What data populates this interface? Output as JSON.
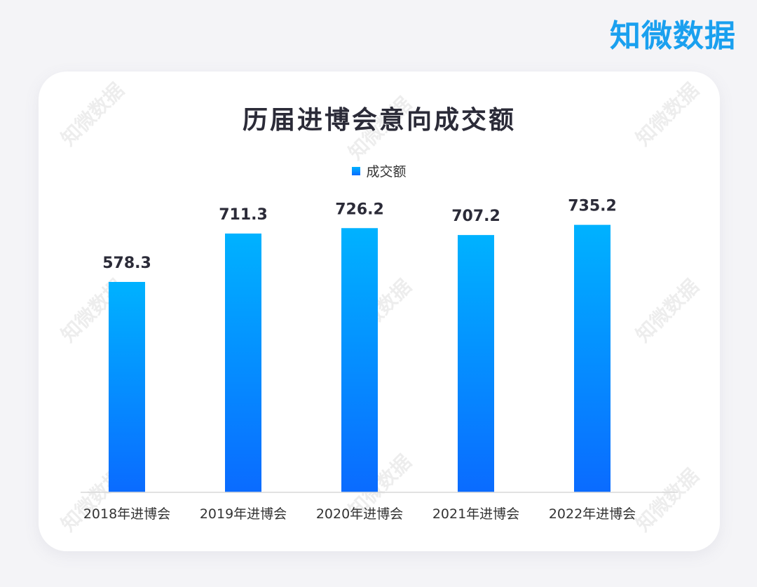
{
  "brand": {
    "text": "知微数据",
    "color": "#1aa0ef"
  },
  "watermark": {
    "text": "知微数据"
  },
  "chart_data": {
    "type": "bar",
    "title": "历届进博会意向成交额",
    "categories": [
      "2018年进博会",
      "2019年进博会",
      "2020年进博会",
      "2021年进博会",
      "2022年进博会"
    ],
    "series": [
      {
        "name": "成交额",
        "values": [
          578.3,
          711.3,
          726.2,
          707.2,
          735.2
        ]
      }
    ],
    "value_labels": [
      "578.3",
      "711.3",
      "726.2",
      "707.2",
      "735.2"
    ],
    "ylim": [
      0,
      800
    ],
    "grid": false,
    "legend": "top-center",
    "colors": {
      "bar_top": "#00b2ff",
      "bar_bottom": "#0a6bff",
      "label": "#2b2b38",
      "axis": "#d9d9d9"
    }
  }
}
